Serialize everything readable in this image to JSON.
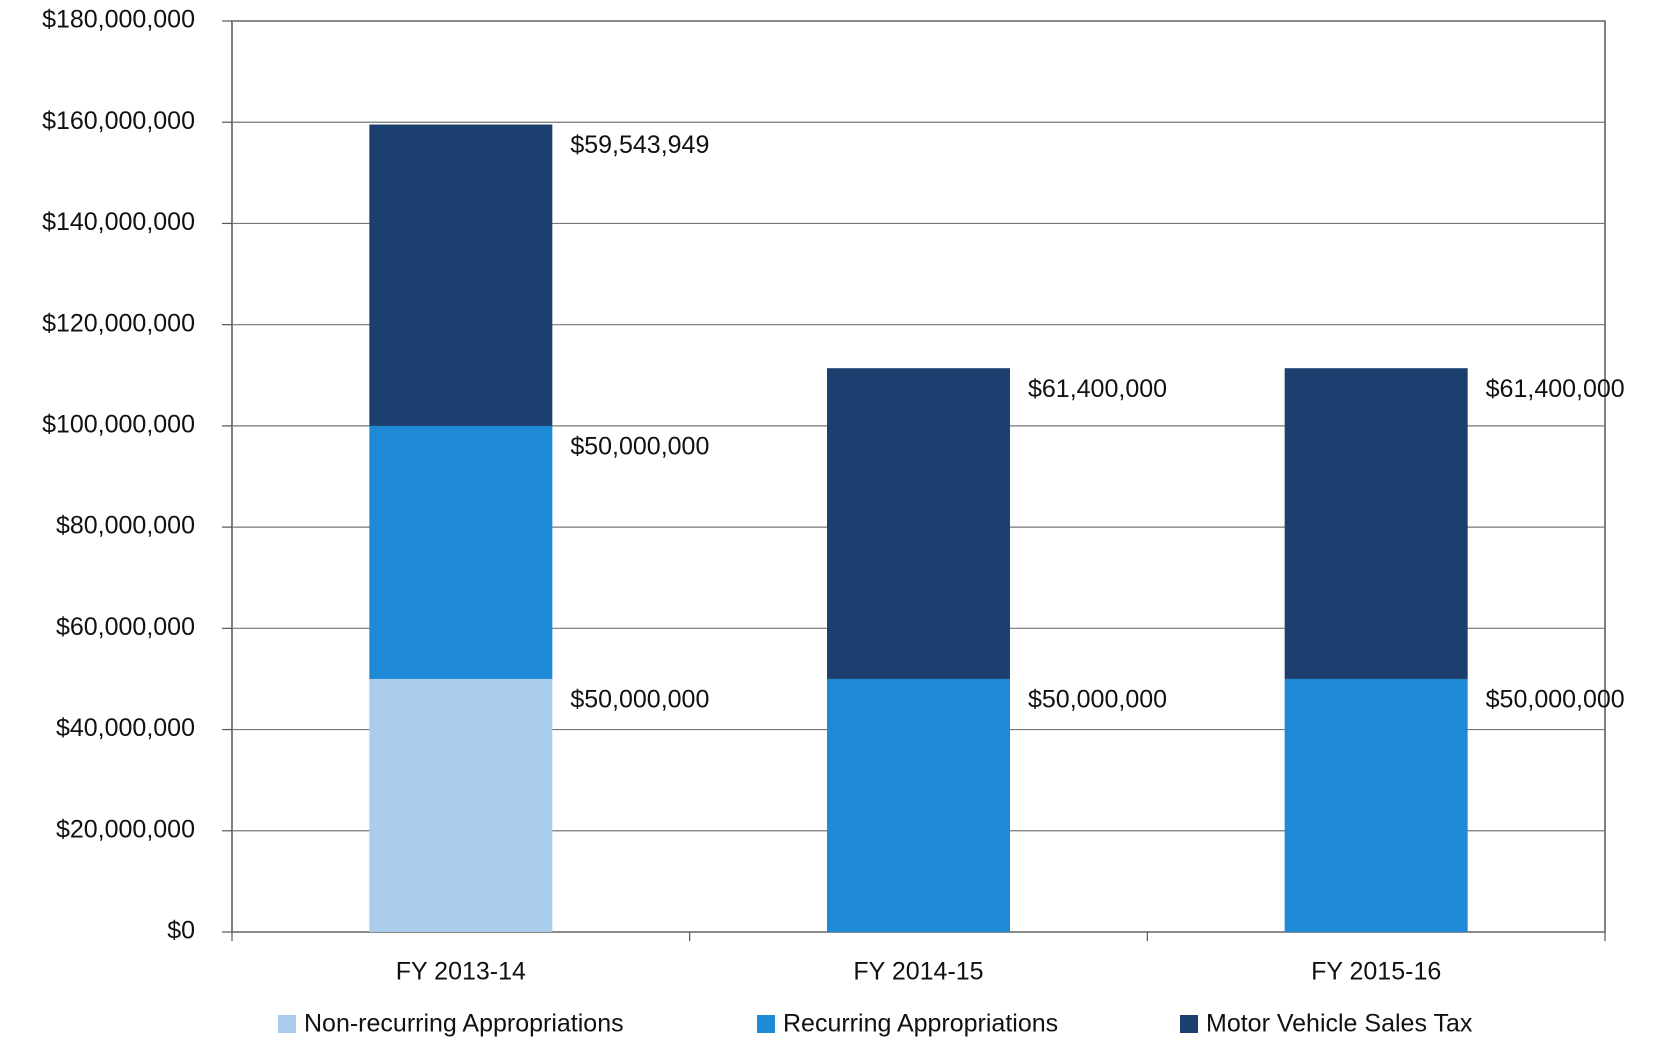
{
  "chart_data": {
    "type": "stacked-bar",
    "categories": [
      "FY 2013-14",
      "FY 2014-15",
      "FY 2015-16"
    ],
    "series": [
      {
        "name": "Non-recurring Appropriations",
        "color": "#a9cdea",
        "values": [
          50000000,
          null,
          null
        ],
        "value_labels": [
          "$50,000,000",
          null,
          null
        ]
      },
      {
        "name": "Recurring Appropriations",
        "color": "#1e8ad6",
        "values": [
          50000000,
          50000000,
          50000000
        ],
        "value_labels": [
          "$50,000,000",
          "$50,000,000",
          "$50,000,000"
        ]
      },
      {
        "name": "Motor Vehicle Sales Tax",
        "color": "#1b3f6e",
        "values": [
          59543949,
          61400000,
          61400000
        ],
        "value_labels": [
          "$59,543,949",
          "$61,400,000",
          "$61,400,000"
        ]
      }
    ],
    "ylim": [
      0,
      180000000
    ],
    "yticks": [
      {
        "value": 0,
        "label": "$0"
      },
      {
        "value": 20000000,
        "label": "$20,000,000"
      },
      {
        "value": 40000000,
        "label": "$40,000,000"
      },
      {
        "value": 60000000,
        "label": "$60,000,000"
      },
      {
        "value": 80000000,
        "label": "$80,000,000"
      },
      {
        "value": 100000000,
        "label": "$100,000,000"
      },
      {
        "value": 120000000,
        "label": "$120,000,000"
      },
      {
        "value": 140000000,
        "label": "$140,000,000"
      },
      {
        "value": 160000000,
        "label": "$160,000,000"
      },
      {
        "value": 180000000,
        "label": "$180,000,000"
      }
    ],
    "grid": true,
    "legend": "bottom"
  }
}
